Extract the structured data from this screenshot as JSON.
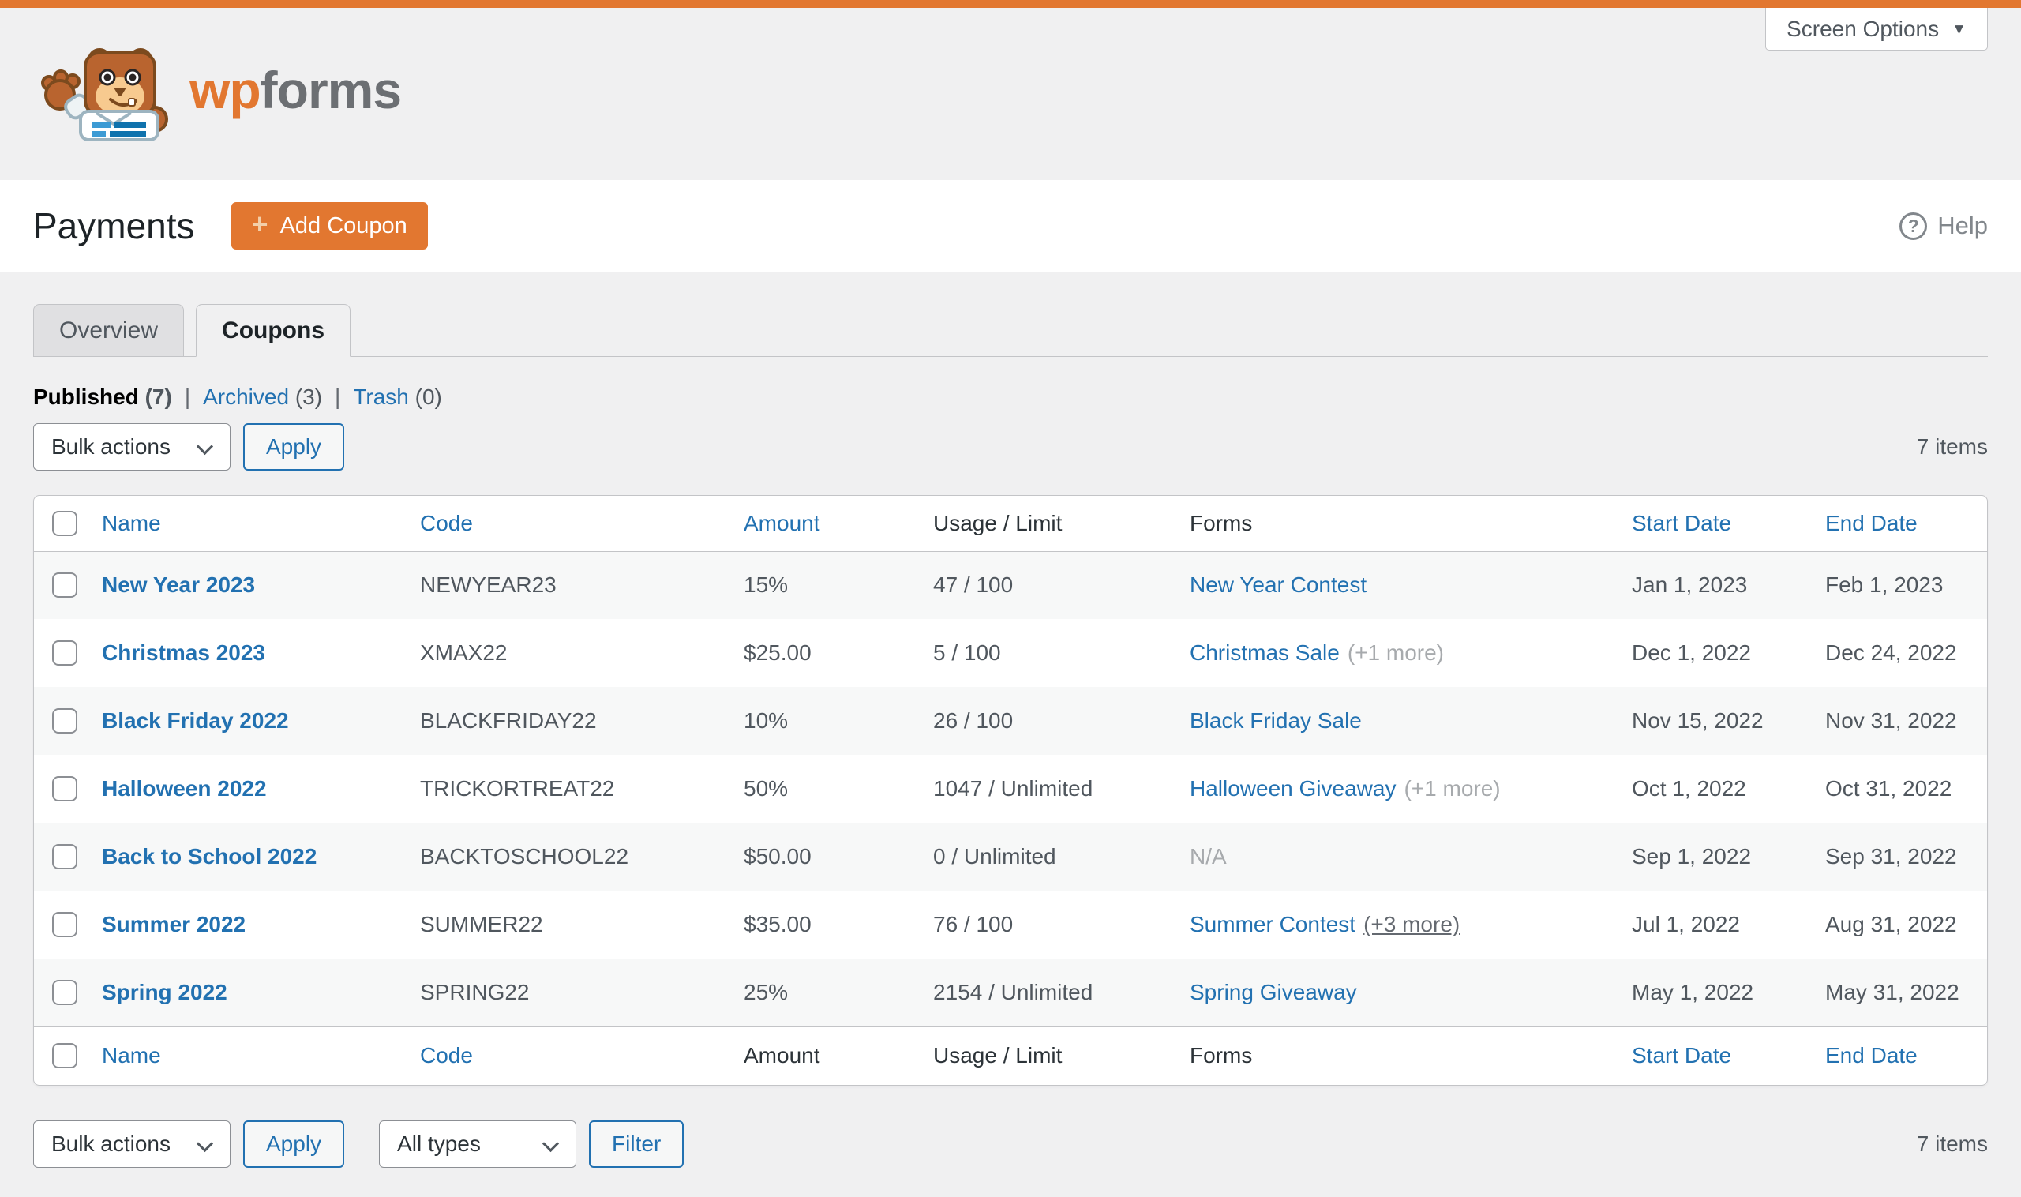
{
  "colors": {
    "accent": "#e27730",
    "link": "#2271b1",
    "page_bg": "#f0f0f1",
    "border": "#c3c4c7",
    "text": "#50575e",
    "muted": "#a7aaad"
  },
  "header": {
    "logo_wp": "wp",
    "logo_forms": "forms",
    "screen_options_label": "Screen Options"
  },
  "title_bar": {
    "title": "Payments",
    "add_coupon_label": "Add Coupon",
    "help_label": "Help"
  },
  "tabs": [
    {
      "label": "Overview",
      "active": false
    },
    {
      "label": "Coupons",
      "active": true
    }
  ],
  "status_filters": [
    {
      "label": "Published",
      "count": "(7)",
      "current": true
    },
    {
      "label": "Archived",
      "count": "(3)",
      "current": false
    },
    {
      "label": "Trash",
      "count": "(0)",
      "current": false
    }
  ],
  "toolbar_top": {
    "bulk_actions_value": "Bulk actions",
    "apply_label": "Apply",
    "items_count": "7 items"
  },
  "toolbar_bottom": {
    "bulk_actions_value": "Bulk actions",
    "apply_label": "Apply",
    "type_filter_value": "All types",
    "filter_label": "Filter",
    "items_count": "7 items"
  },
  "table": {
    "columns": [
      {
        "label": "Name",
        "sortable_top": true,
        "sortable_bottom": true
      },
      {
        "label": "Code",
        "sortable_top": true,
        "sortable_bottom": true
      },
      {
        "label": "Amount",
        "sortable_top": true,
        "sortable_bottom": false
      },
      {
        "label": "Usage / Limit",
        "sortable_top": false,
        "sortable_bottom": false
      },
      {
        "label": "Forms",
        "sortable_top": false,
        "sortable_bottom": false
      },
      {
        "label": "Start Date",
        "sortable_top": true,
        "sortable_bottom": true
      },
      {
        "label": "End Date",
        "sortable_top": true,
        "sortable_bottom": true
      }
    ],
    "rows": [
      {
        "name": "New Year 2023",
        "code": "NEWYEAR23",
        "amount": "15%",
        "usage": "47 / 100",
        "form_link": "New Year Contest",
        "form_extra": "",
        "start_date": "Jan 1, 2023",
        "end_date": "Feb 1, 2023"
      },
      {
        "name": "Christmas 2023",
        "code": "XMAX22",
        "amount": "$25.00",
        "usage": "5 / 100",
        "form_link": "Christmas Sale",
        "form_extra": "(+1 more)",
        "start_date": "Dec 1, 2022",
        "end_date": "Dec 24, 2022"
      },
      {
        "name": "Black Friday 2022",
        "code": "BLACKFRIDAY22",
        "amount": "10%",
        "usage": "26 / 100",
        "form_link": "Black Friday Sale",
        "form_extra": "",
        "start_date": "Nov 15, 2022",
        "end_date": "Nov 31, 2022"
      },
      {
        "name": "Halloween 2022",
        "code": "TRICKORTREAT22",
        "amount": "50%",
        "usage": "1047 / Unlimited",
        "form_link": "Halloween Giveaway",
        "form_extra": "(+1 more)",
        "start_date": "Oct 1, 2022",
        "end_date": "Oct 31, 2022"
      },
      {
        "name": "Back to School 2022",
        "code": "BACKTOSCHOOL22",
        "amount": "$50.00",
        "usage": "0 / Unlimited",
        "form_na": "N/A",
        "form_extra": "",
        "start_date": "Sep 1, 2022",
        "end_date": "Sep 31, 2022"
      },
      {
        "name": "Summer 2022",
        "code": "SUMMER22",
        "amount": "$35.00",
        "usage": "76 / 100",
        "form_link": "Summer Contest",
        "form_extra": "(+3 more)",
        "form_extra_underline": true,
        "start_date": "Jul 1, 2022",
        "end_date": "Aug 31, 2022"
      },
      {
        "name": "Spring 2022",
        "code": "SPRING22",
        "amount": "25%",
        "usage": "2154 / Unlimited",
        "form_link": "Spring Giveaway",
        "form_extra": "",
        "start_date": "May 1, 2022",
        "end_date": "May 31, 2022"
      }
    ]
  }
}
